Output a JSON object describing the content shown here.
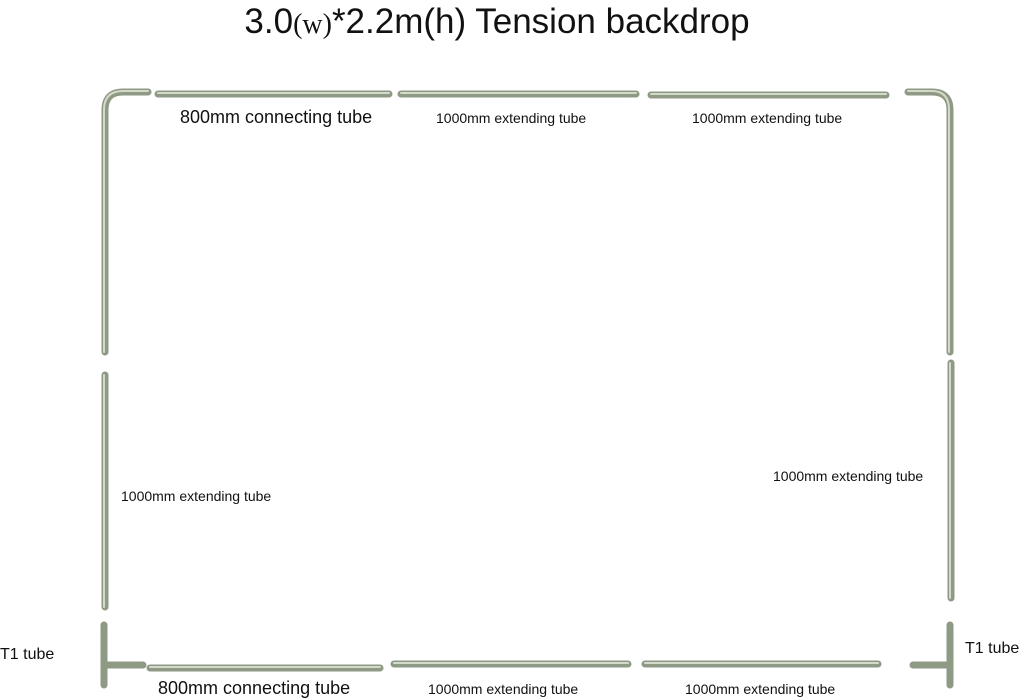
{
  "header": {
    "title": {
      "parts": [
        "3.0",
        "(w)",
        "*2.2m(h) Tension backdrop"
      ]
    }
  },
  "labels": [
    "800mm connecting tube",
    "1000mm extending tube",
    "1000mm extending tube",
    "1000mm extending tube",
    "1000mm extending tube",
    "T1 tube",
    "800mm connecting tube",
    "1000mm extending tube",
    "1000mm extending tube",
    "T1 tube"
  ]
}
